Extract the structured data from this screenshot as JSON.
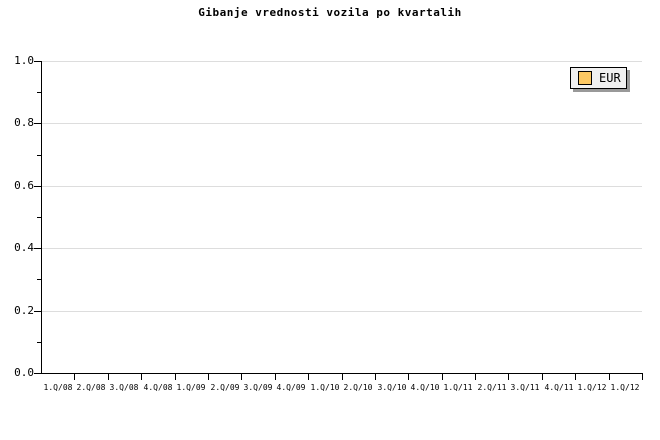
{
  "title": "Gibanje vrednosti vozila po kvartalih",
  "legend": {
    "items": [
      {
        "label": "EUR",
        "swatch_color": "#fcc863"
      }
    ]
  },
  "chart_data": {
    "type": "line",
    "title": "Gibanje vrednosti vozila po kvartalih",
    "categories": [
      "1.Q/08",
      "2.Q/08",
      "3.Q/08",
      "4.Q/08",
      "1.Q/09",
      "2.Q/09",
      "3.Q/09",
      "4.Q/09",
      "1.Q/10",
      "2.Q/10",
      "3.Q/10",
      "4.Q/10",
      "1.Q/11",
      "2.Q/11",
      "3.Q/11",
      "4.Q/11",
      "1.Q/12",
      "1.Q/12"
    ],
    "series": [
      {
        "name": "EUR",
        "color": "#fcc863",
        "values": []
      }
    ],
    "ylim": [
      0.0,
      1.0
    ],
    "yticks": [
      "0.0",
      "0.2",
      "0.4",
      "0.6",
      "0.8",
      "1.0"
    ],
    "y_minor_step": 0.1,
    "grid": "horizontal-major",
    "legend_position": "top-right",
    "colors": {
      "background": "#ffffff",
      "axis": "#000000",
      "grid": "#dddddd",
      "legend_bg": "#f0f0f0",
      "legend_shadow": "#999999"
    }
  }
}
